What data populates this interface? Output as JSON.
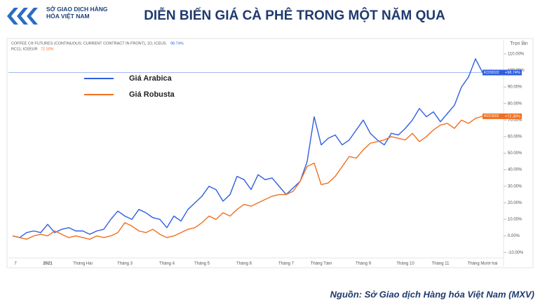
{
  "logo": "SỞ GIAO DỊCH HÀNG HÓA VIỆT NAM",
  "source": "Nguồn: Sở Giao dịch Hàng hóa Việt Nam (MXV)",
  "chart_data": {
    "type": "line",
    "title": "DIỄN BIẾN GIÁ CÀ PHÊ TRONG MỘT NĂM QUA",
    "y_axis_label": "Trọn lần",
    "categories": [
      "7",
      null,
      null,
      null,
      null,
      "2021",
      null,
      null,
      null,
      null,
      "Tháng Hai",
      null,
      null,
      null,
      null,
      null,
      "Tháng 3",
      null,
      null,
      null,
      null,
      null,
      "Tháng 4",
      null,
      null,
      null,
      null,
      "Tháng 5",
      null,
      null,
      null,
      null,
      null,
      "Tháng 6",
      null,
      null,
      null,
      null,
      null,
      "Tháng 7",
      null,
      null,
      null,
      null,
      "Tháng Tám",
      null,
      null,
      null,
      null,
      null,
      "Tháng 9",
      null,
      null,
      null,
      null,
      null,
      "Tháng 10",
      null,
      null,
      null,
      null,
      "Tháng 11",
      null,
      null,
      null,
      null,
      null,
      "Tháng Mười hai"
    ],
    "series": [
      {
        "name": "Giá Arabica",
        "color": "#2f5fe0",
        "symbol": "COFFEE C® FUTURES (CONTINUOUS: CURRENT CONTRACT IN FRONT), 1D, ICEUS",
        "header_label": "98.74%",
        "tag": "KCH2022",
        "last_label": "+98.74%",
        "values": [
          0,
          -1,
          2,
          3,
          2,
          7,
          2,
          4,
          5,
          3,
          3,
          1,
          3,
          4,
          10,
          15,
          12,
          10,
          16,
          14,
          11,
          10,
          5,
          12,
          9,
          16,
          20,
          24,
          30,
          28,
          21,
          25,
          36,
          34,
          28,
          37,
          34,
          35,
          30,
          25,
          29,
          33,
          45,
          72,
          55,
          59,
          61,
          55,
          58,
          64,
          70,
          62,
          58,
          55,
          62,
          61,
          65,
          70,
          77,
          72,
          75,
          69,
          74,
          79,
          90,
          96,
          107,
          98.74
        ]
      },
      {
        "name": "Giá Robusta",
        "color": "#f07020",
        "symbol": "RC11, ICEEUR",
        "header_label": "72.30%",
        "tag": "RCF2022",
        "last_label": "+72.30%",
        "values": [
          0,
          -1,
          -2,
          0,
          1,
          0,
          3,
          1,
          -1,
          0,
          -1,
          -2,
          0,
          -1,
          0,
          2,
          8,
          6,
          3,
          2,
          4,
          1,
          -1,
          0,
          2,
          4,
          5,
          8,
          12,
          10,
          14,
          12,
          16,
          19,
          18,
          20,
          22,
          24,
          25,
          25,
          27,
          33,
          42,
          44,
          31,
          32,
          36,
          42,
          48,
          47,
          52,
          56,
          57,
          58,
          60,
          59,
          58,
          62,
          57,
          60,
          64,
          67,
          68,
          65,
          70,
          68,
          71,
          72.3
        ]
      }
    ],
    "ylim": [
      -15,
      118
    ],
    "yticks": [
      {
        "value": -10,
        "label": "-10.00%"
      },
      {
        "value": 0,
        "label": "0.00%"
      },
      {
        "value": 10,
        "label": "10.00%"
      },
      {
        "value": 20,
        "label": "20.00%"
      },
      {
        "value": 30,
        "label": "30.00%"
      },
      {
        "value": 40,
        "label": "40.00%"
      },
      {
        "value": 50,
        "label": "50.00%"
      },
      {
        "value": 60,
        "label": "60.00%"
      },
      {
        "value": 70,
        "label": "70.00%"
      },
      {
        "value": 80,
        "label": "80.00%"
      },
      {
        "value": 90,
        "label": "90.00%"
      },
      {
        "value": 100,
        "label": "100.00%"
      },
      {
        "value": 110,
        "label": "110.00%"
      }
    ],
    "grid": false
  }
}
